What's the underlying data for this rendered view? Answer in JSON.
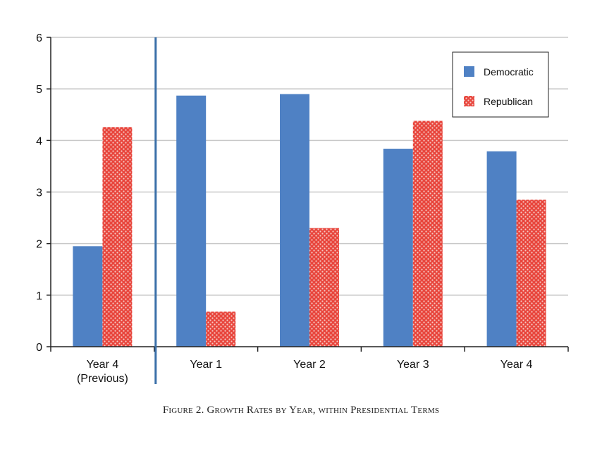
{
  "chart_data": {
    "type": "bar",
    "categories": [
      "Year 4\n(Previous)",
      "Year 1",
      "Year 2",
      "Year 3",
      "Year 4"
    ],
    "series": [
      {
        "name": "Democratic",
        "values": [
          1.95,
          4.87,
          4.9,
          3.84,
          3.79
        ],
        "color": "#4f81c4"
      },
      {
        "name": "Republican",
        "values": [
          4.26,
          0.68,
          2.3,
          4.38,
          2.85
        ],
        "color": "#d9322c"
      }
    ],
    "yticks": [
      0,
      1,
      2,
      3,
      4,
      5,
      6
    ],
    "ylim": [
      0,
      6
    ],
    "grid": true,
    "legend_position": "top-right",
    "title": "Figure 2. Growth Rates by Year, within Presidential Terms",
    "xlabel": "",
    "ylabel": ""
  }
}
